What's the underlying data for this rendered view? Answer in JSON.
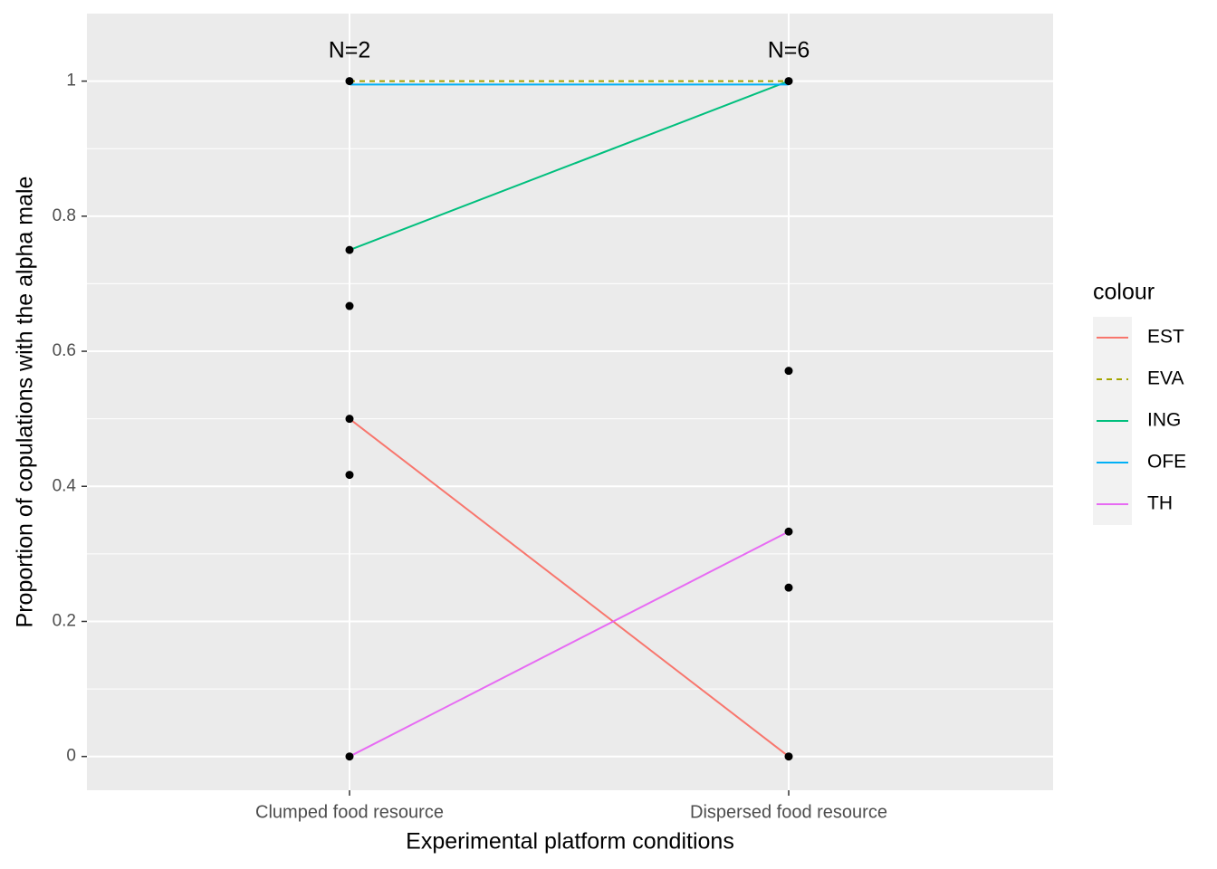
{
  "chart_data": {
    "type": "line",
    "xlabel": "Experimental platform conditions",
    "ylabel": "Proportion of copulations with the alpha male",
    "categories": [
      "Clumped food resource",
      "Dispersed food resource"
    ],
    "ylim": [
      -0.05,
      1.1
    ],
    "yticks": [
      0,
      0.2,
      0.4,
      0.6,
      0.8,
      1
    ],
    "ytick_labels": [
      "0",
      "0.2",
      "0.4",
      "0.6",
      "0.8",
      "1"
    ],
    "grid": true,
    "annotations": [
      "N=2",
      "N=6"
    ],
    "legend": {
      "title": "colour",
      "position": "right",
      "entries": [
        "EST",
        "EVA",
        "ING",
        "OFE",
        "TH"
      ]
    },
    "series": [
      {
        "name": "EST",
        "color": "#F8766D",
        "dash": "solid",
        "values": [
          0.5,
          0
        ]
      },
      {
        "name": "EVA",
        "color": "#A3A500",
        "dash": "dashed",
        "values": [
          1,
          1
        ]
      },
      {
        "name": "ING",
        "color": "#00BF7D",
        "dash": "solid",
        "values": [
          0.75,
          1
        ]
      },
      {
        "name": "OFE",
        "color": "#00B0F6",
        "dash": "solid",
        "values": [
          0.995,
          0.995
        ]
      },
      {
        "name": "TH",
        "color": "#E76BF3",
        "dash": "solid",
        "values": [
          0,
          0.333
        ]
      }
    ],
    "points": [
      {
        "category": "Clumped food resource",
        "y": 1
      },
      {
        "category": "Clumped food resource",
        "y": 0.75
      },
      {
        "category": "Clumped food resource",
        "y": 0.667
      },
      {
        "category": "Clumped food resource",
        "y": 0.5
      },
      {
        "category": "Clumped food resource",
        "y": 0.417
      },
      {
        "category": "Clumped food resource",
        "y": 0
      },
      {
        "category": "Dispersed food resource",
        "y": 1
      },
      {
        "category": "Dispersed food resource",
        "y": 0.571
      },
      {
        "category": "Dispersed food resource",
        "y": 0.333
      },
      {
        "category": "Dispersed food resource",
        "y": 0.25
      },
      {
        "category": "Dispersed food resource",
        "y": 0
      }
    ],
    "colors": {
      "panel_background": "#EBEBEB",
      "grid": "#FFFFFF",
      "point": "#000000",
      "axis_text": "#4D4D4D",
      "title_text": "#000000"
    }
  }
}
